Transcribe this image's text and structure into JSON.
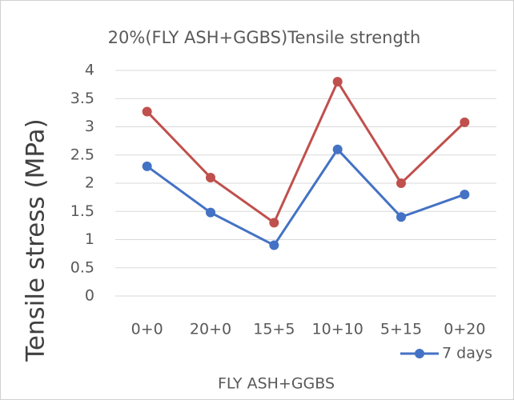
{
  "chart_data": {
    "type": "line",
    "title": "20%(FLY ASH+GGBS)Tensile strength",
    "x_label": "FLY ASH+GGBS",
    "y_label": "Tensile stress (MPa)",
    "categories": [
      "0+0",
      "20+0",
      "15+5",
      "10+10",
      "5+15",
      "0+20"
    ],
    "series": [
      {
        "name": "7 days",
        "color": "#4472c4",
        "values": [
          2.3,
          1.48,
          0.9,
          2.6,
          1.4,
          1.8
        ]
      },
      {
        "color": "#c0504d",
        "values": [
          3.27,
          2.1,
          1.3,
          3.8,
          2.0,
          3.08
        ]
      }
    ],
    "ylim": [
      0,
      4
    ],
    "yticks": [
      0,
      0.5,
      1,
      1.5,
      2,
      2.5,
      3,
      3.5,
      4
    ],
    "grid": true,
    "legend": "bottom-right"
  }
}
